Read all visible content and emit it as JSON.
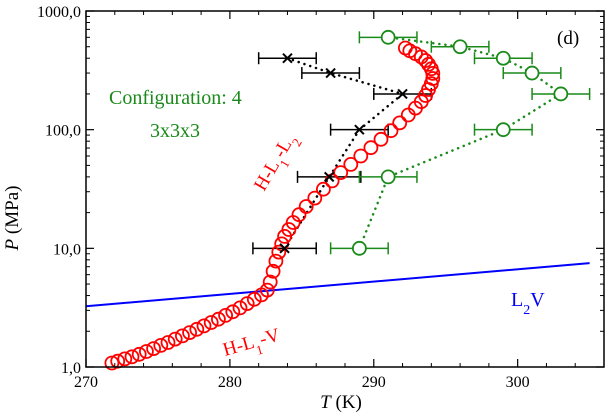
{
  "chart_data": {
    "type": "scatter",
    "panel_label": "(d)",
    "xlabel": {
      "symbol": "T",
      "unit": " (K)"
    },
    "ylabel": {
      "symbol": "P",
      "unit": " (MPa)"
    },
    "xlim": [
      270,
      306
    ],
    "ylim": [
      1,
      1000
    ],
    "yscale": "log",
    "xticks": [
      {
        "value": 270,
        "label": "270"
      },
      {
        "value": 280,
        "label": "280"
      },
      {
        "value": 290,
        "label": "290"
      },
      {
        "value": 300,
        "label": "300"
      }
    ],
    "yticks": [
      {
        "value": 1,
        "label": "1,0"
      },
      {
        "value": 10,
        "label": "10,0"
      },
      {
        "value": 100,
        "label": "100,0"
      },
      {
        "value": 1000,
        "label": "1000,0"
      }
    ],
    "annotations": {
      "config_line1": "Configuration: 4",
      "config_line2": "3x3x3",
      "h_l1_l2": {
        "a": "H-L",
        "s1": "1",
        "b": "-L",
        "s2": "2"
      },
      "h_l1_v": {
        "a": "H-L",
        "s1": "1",
        "b": "-V"
      },
      "l2v": {
        "a": "L",
        "s1": "2",
        "b": "V"
      }
    },
    "colors": {
      "red": "#ff0000",
      "green": "#1a8a1a",
      "black": "#000000",
      "blue": "#0000ff"
    },
    "series": [
      {
        "name": "H-L1-L2 / H-L1-V (red circles)",
        "points": [
          [
            271.8,
            1.08
          ],
          [
            272.2,
            1.12
          ],
          [
            272.7,
            1.17
          ],
          [
            273.2,
            1.22
          ],
          [
            273.7,
            1.28
          ],
          [
            274.2,
            1.35
          ],
          [
            274.7,
            1.43
          ],
          [
            275.2,
            1.52
          ],
          [
            275.7,
            1.61
          ],
          [
            276.2,
            1.72
          ],
          [
            276.7,
            1.83
          ],
          [
            277.2,
            1.95
          ],
          [
            277.7,
            2.08
          ],
          [
            278.2,
            2.22
          ],
          [
            278.7,
            2.37
          ],
          [
            279.2,
            2.53
          ],
          [
            279.7,
            2.72
          ],
          [
            280.2,
            2.92
          ],
          [
            280.7,
            3.15
          ],
          [
            281.2,
            3.42
          ],
          [
            281.7,
            3.72
          ],
          [
            282.2,
            4.05
          ],
          [
            282.6,
            4.45
          ],
          [
            282.8,
            5.2
          ],
          [
            283.0,
            6.4
          ],
          [
            283.2,
            7.8
          ],
          [
            283.4,
            9.3
          ],
          [
            283.6,
            10.9
          ],
          [
            283.8,
            12.6
          ],
          [
            284.1,
            14.4
          ],
          [
            284.4,
            16.5
          ],
          [
            284.8,
            19.2
          ],
          [
            285.3,
            22.5
          ],
          [
            285.9,
            26.5
          ],
          [
            286.5,
            31.5
          ],
          [
            287.1,
            37.0
          ],
          [
            287.7,
            43.5
          ],
          [
            288.4,
            51.0
          ],
          [
            289.1,
            60.0
          ],
          [
            289.8,
            70.5
          ],
          [
            290.5,
            83.0
          ],
          [
            291.2,
            98.0
          ],
          [
            291.8,
            114.0
          ],
          [
            292.4,
            133.0
          ],
          [
            292.9,
            152.0
          ],
          [
            293.3,
            172.0
          ],
          [
            293.6,
            194.0
          ],
          [
            293.8,
            218.0
          ],
          [
            294.0,
            244.0
          ],
          [
            294.1,
            270.0
          ],
          [
            294.1,
            298.0
          ],
          [
            294.0,
            326.0
          ],
          [
            293.8,
            355.0
          ],
          [
            293.6,
            383.0
          ],
          [
            293.3,
            410.0
          ],
          [
            292.9,
            437.0
          ],
          [
            292.5,
            462.0
          ],
          [
            292.2,
            488.0
          ]
        ]
      },
      {
        "name": "Crosses with error bars (black)",
        "points": [
          [
            283.8,
            10
          ],
          [
            286.9,
            40
          ],
          [
            289.0,
            100
          ],
          [
            292.0,
            200
          ],
          [
            287.0,
            300
          ],
          [
            284.0,
            400
          ]
        ],
        "xerr": [
          2.2,
          2.2,
          2.0,
          2.0,
          2.0,
          2.0
        ]
      },
      {
        "name": "Configuration 4 3x3x3 (green circles)",
        "points": [
          [
            289.0,
            10
          ],
          [
            291.0,
            40
          ],
          [
            299.0,
            100
          ],
          [
            303.0,
            200
          ],
          [
            301.0,
            300
          ],
          [
            299.0,
            400
          ],
          [
            296.0,
            500
          ],
          [
            291.0,
            600
          ]
        ],
        "xerr": [
          2.0,
          2.0,
          2.0,
          2.0,
          2.0,
          2.0,
          2.0,
          2.0
        ]
      },
      {
        "name": "L2V (blue line)",
        "points": [
          [
            270,
            3.25
          ],
          [
            305,
            7.5
          ]
        ]
      }
    ]
  }
}
